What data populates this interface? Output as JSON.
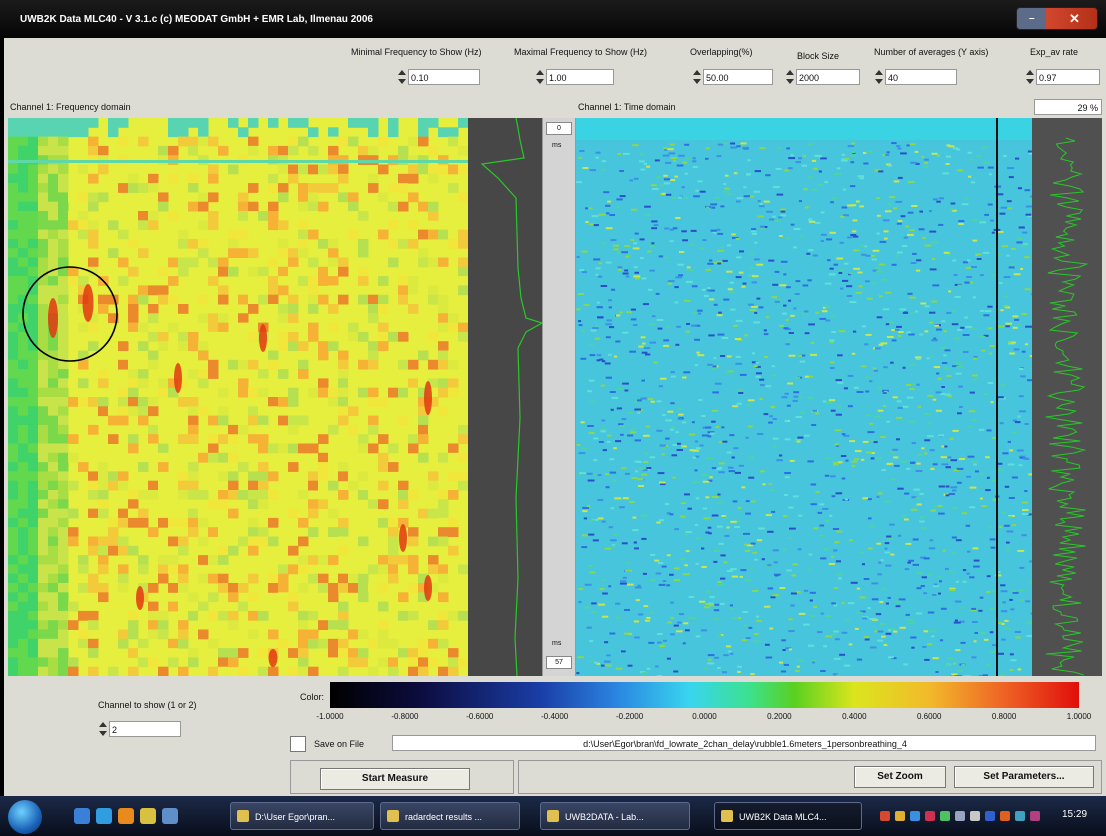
{
  "window": {
    "title": "UWB2K Data MLC40 - V 3.1.c (c) MEODAT GmbH + EMR Lab, Ilmenau 2006",
    "minimize_glyph": "–",
    "close_glyph": "✕"
  },
  "params": [
    {
      "label": "Minimal Frequency to Show (Hz)",
      "value": "0.10"
    },
    {
      "label": "Maximal Frequency to Show (Hz)",
      "value": "1.00"
    },
    {
      "label": "Overlapping(%)",
      "value": "50.00"
    },
    {
      "label": "Block Size",
      "value": "2000"
    },
    {
      "label": "Number of averages (Y axis)",
      "value": "40"
    },
    {
      "label": "Exp_av rate",
      "value": "0.97"
    }
  ],
  "freq_panel": {
    "label": "Channel 1: Frequency domain"
  },
  "time_panel": {
    "label": "Channel 1: Time domain"
  },
  "progress": {
    "value": "29",
    "unit": "%"
  },
  "mid_axis": {
    "top_box": "0",
    "top_text": "ms",
    "bottom_text": "ms",
    "bottom_box": "57"
  },
  "channel": {
    "label": "Channel to show (1 or 2)",
    "value": "2"
  },
  "color_scale": {
    "label": "Color:",
    "ticks": [
      "-1.0000",
      "-0.8000",
      "-0.6000",
      "-0.4000",
      "-0.2000",
      "0.0000",
      "0.2000",
      "0.4000",
      "0.6000",
      "0.8000",
      "1.0000"
    ]
  },
  "save": {
    "label": "Save on File",
    "checked": false,
    "path": "d:\\User\\Egor\\bran\\fd_lowrate_2chan_delay\\rubble1.6meters_1personbreathing_4"
  },
  "buttons": {
    "start": "Start Measure",
    "zoom": "Set Zoom",
    "params": "Set Parameters..."
  },
  "taskbar": {
    "tasks": [
      "D:\\User Egor\\pran...",
      "radardect results ...",
      "UWB2DATA - Lab...",
      "UWB2K Data MLC4..."
    ],
    "clock": "15:29"
  },
  "colors": {
    "freq_base": "#e6ef3e",
    "hot": "#e23a10",
    "time_base": "#46c5dc",
    "trace": "#28c828",
    "circle": "#000000"
  }
}
